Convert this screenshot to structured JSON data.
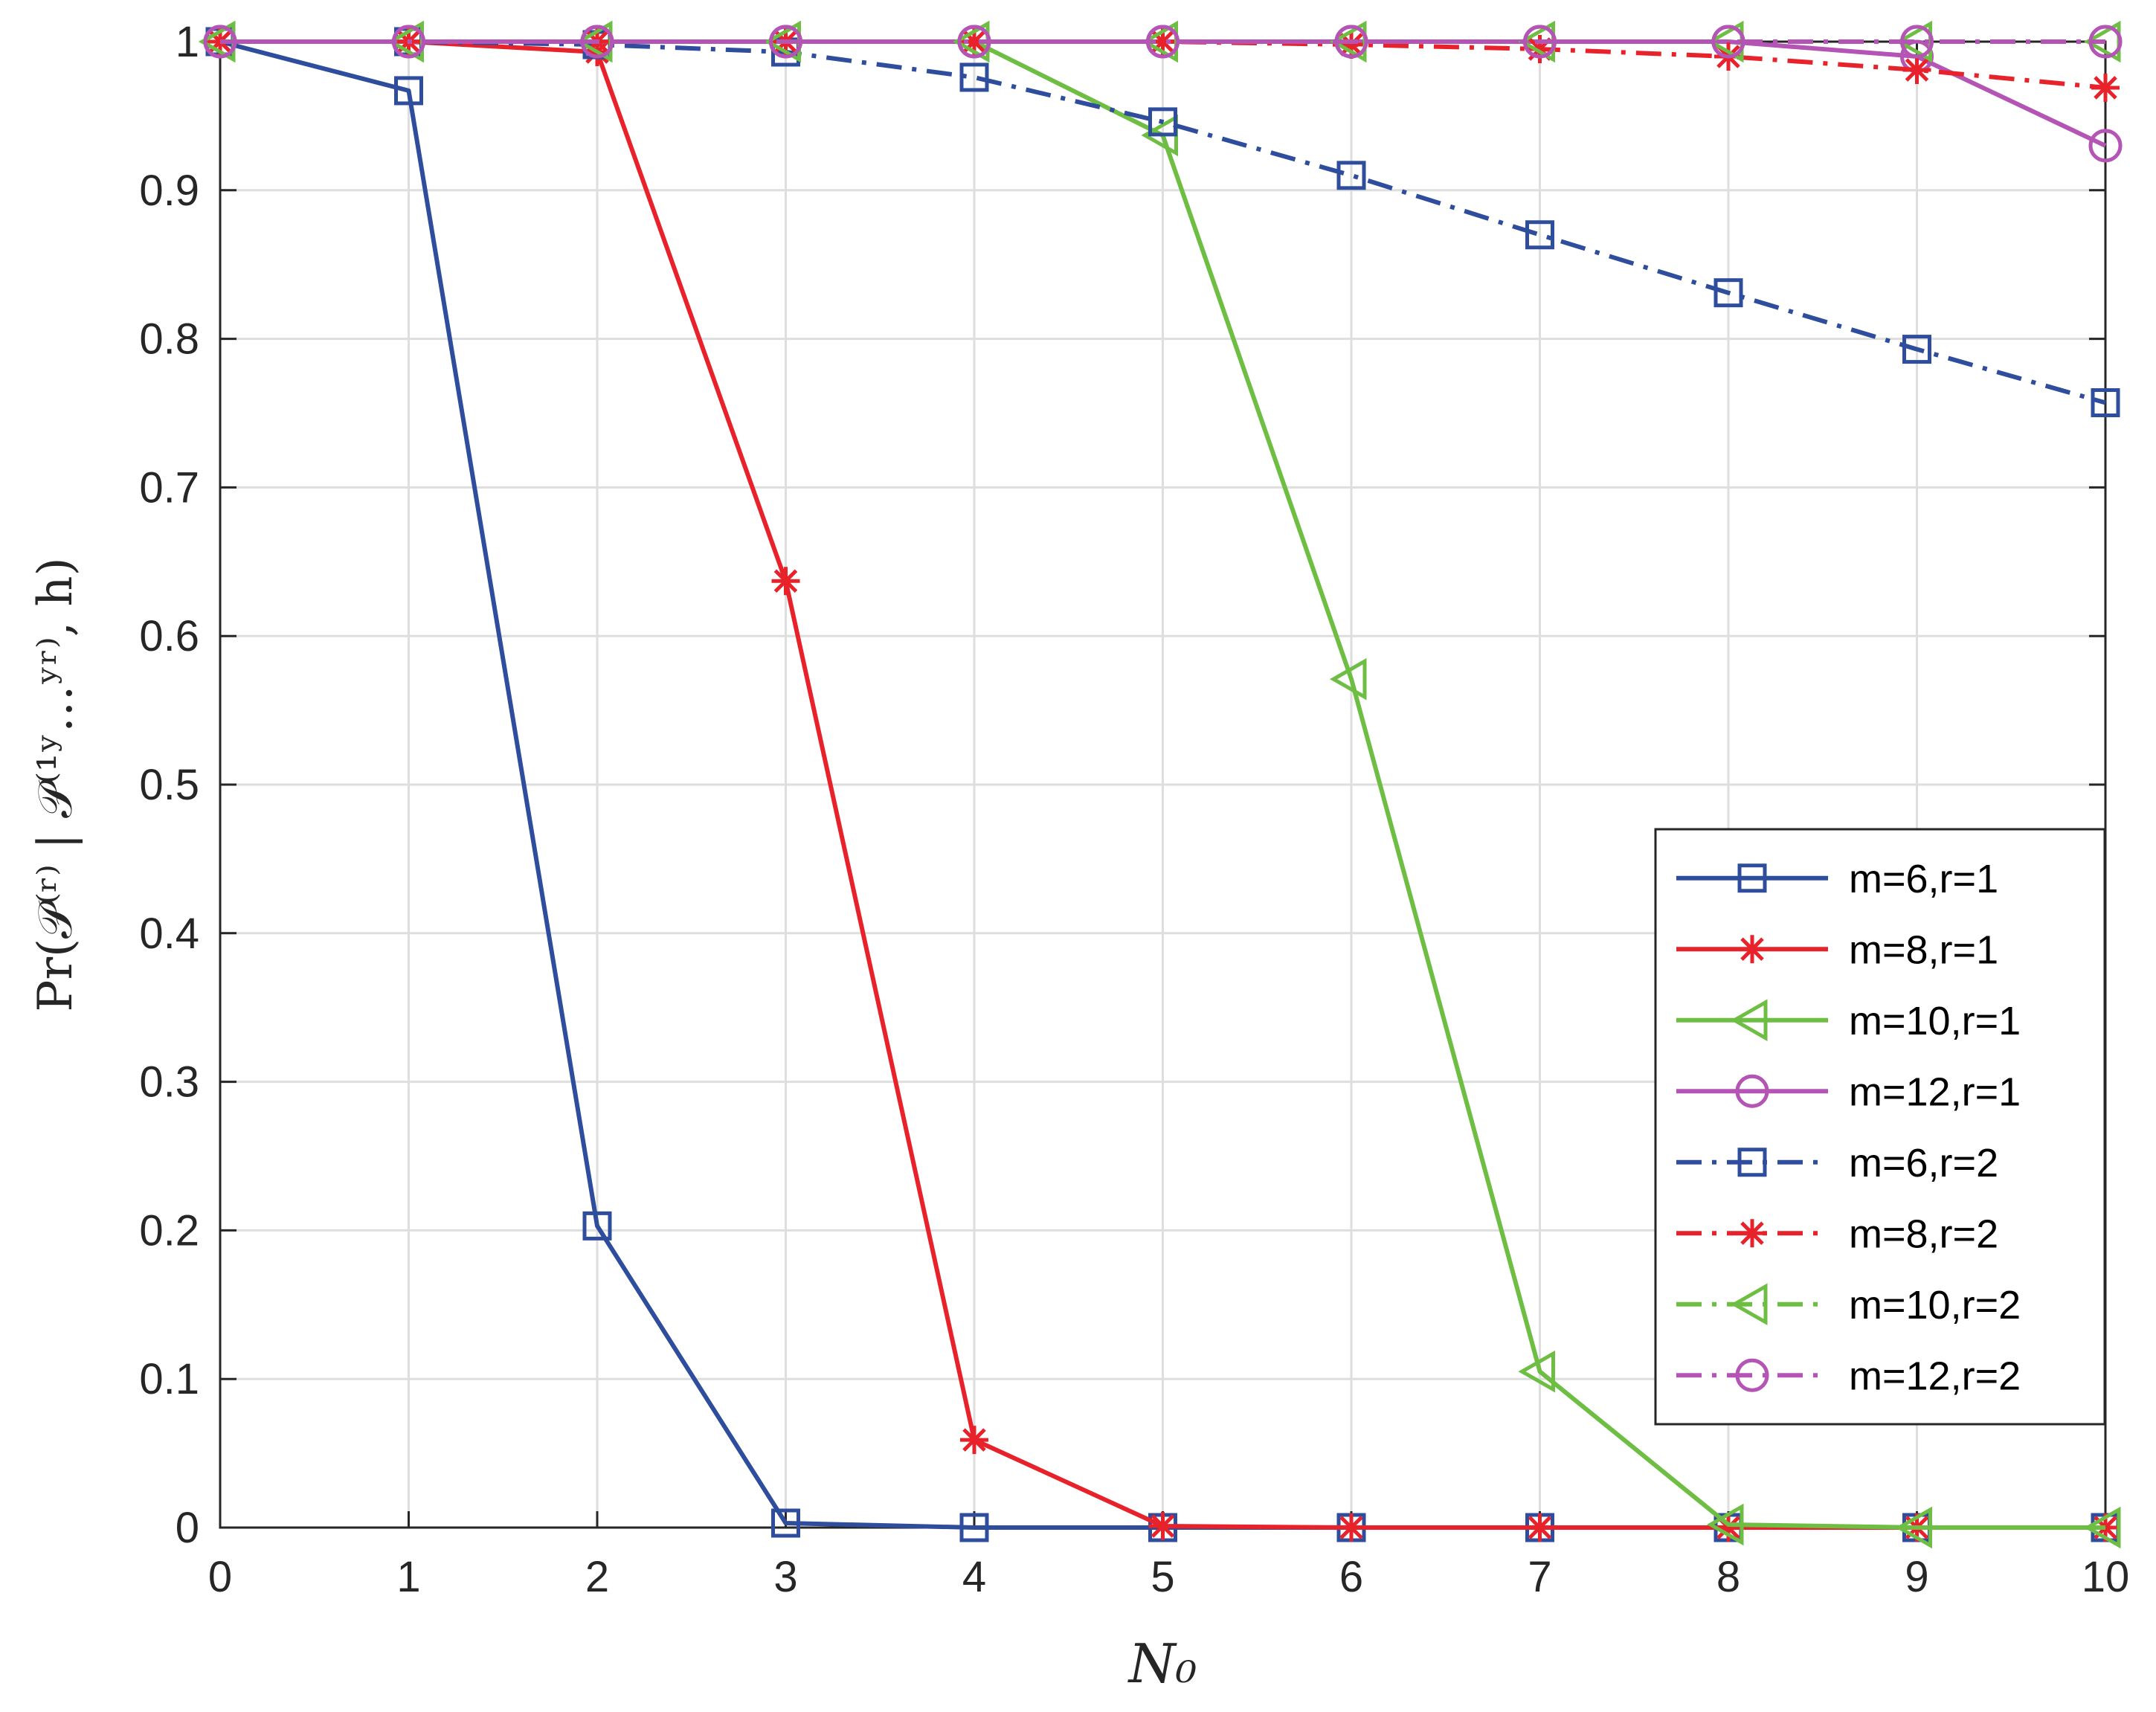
{
  "chart_data": {
    "type": "line",
    "xlabel": "N₀",
    "ylabel": "Pr(𝒫⁽ʳ⁾ | 𝒫⁽¹ʸ…ʸʳ⁾, h)",
    "x": [
      0,
      1,
      2,
      3,
      4,
      5,
      6,
      7,
      8,
      9,
      10
    ],
    "xlim": [
      0,
      10
    ],
    "ylim": [
      0,
      1
    ],
    "xticks": [
      "0",
      "1",
      "2",
      "3",
      "4",
      "5",
      "6",
      "7",
      "8",
      "9",
      "10"
    ],
    "yticks": [
      "0",
      "0.1",
      "0.2",
      "0.3",
      "0.4",
      "0.5",
      "0.6",
      "0.7",
      "0.8",
      "0.9",
      "1"
    ],
    "grid": true,
    "legend_position": "lower-right",
    "series": [
      {
        "name": "m=6,r=1",
        "color": "#2f4d9d",
        "linestyle": "solid",
        "marker": "square",
        "values": [
          1.0,
          0.967,
          0.203,
          0.003,
          0.0,
          0.0,
          0.0,
          0.0,
          0.0,
          0.0,
          0.0
        ]
      },
      {
        "name": "m=8,r=1",
        "color": "#e8222b",
        "linestyle": "solid",
        "marker": "star",
        "values": [
          1.0,
          1.0,
          0.993,
          0.637,
          0.059,
          0.001,
          0.0,
          0.0,
          0.0,
          0.0,
          0.0
        ]
      },
      {
        "name": "m=10,r=1",
        "color": "#6fbe44",
        "linestyle": "solid",
        "marker": "triangle-left",
        "values": [
          1.0,
          1.0,
          1.0,
          1.0,
          1.0,
          0.937,
          0.571,
          0.105,
          0.002,
          0.0,
          0.0
        ]
      },
      {
        "name": "m=12,r=1",
        "color": "#b455b5",
        "linestyle": "solid",
        "marker": "circle",
        "values": [
          1.0,
          1.0,
          1.0,
          1.0,
          1.0,
          1.0,
          1.0,
          1.0,
          1.0,
          0.99,
          0.93
        ]
      },
      {
        "name": "m=6,r=2",
        "color": "#2f4d9d",
        "linestyle": "dashdot",
        "marker": "square",
        "values": [
          1.0,
          1.0,
          0.998,
          0.993,
          0.976,
          0.946,
          0.91,
          0.87,
          0.831,
          0.793,
          0.757
        ]
      },
      {
        "name": "m=8,r=2",
        "color": "#e8222b",
        "linestyle": "dashdot",
        "marker": "star",
        "values": [
          1.0,
          1.0,
          1.0,
          1.0,
          1.0,
          1.0,
          0.998,
          0.995,
          0.99,
          0.981,
          0.969
        ]
      },
      {
        "name": "m=10,r=2",
        "color": "#6fbe44",
        "linestyle": "dashdot",
        "marker": "triangle-left",
        "values": [
          1.0,
          1.0,
          1.0,
          1.0,
          1.0,
          1.0,
          1.0,
          1.0,
          1.0,
          1.0,
          1.0
        ]
      },
      {
        "name": "m=12,r=2",
        "color": "#b455b5",
        "linestyle": "dashdot",
        "marker": "circle",
        "values": [
          1.0,
          1.0,
          1.0,
          1.0,
          1.0,
          1.0,
          1.0,
          1.0,
          1.0,
          1.0,
          1.0
        ]
      }
    ]
  }
}
